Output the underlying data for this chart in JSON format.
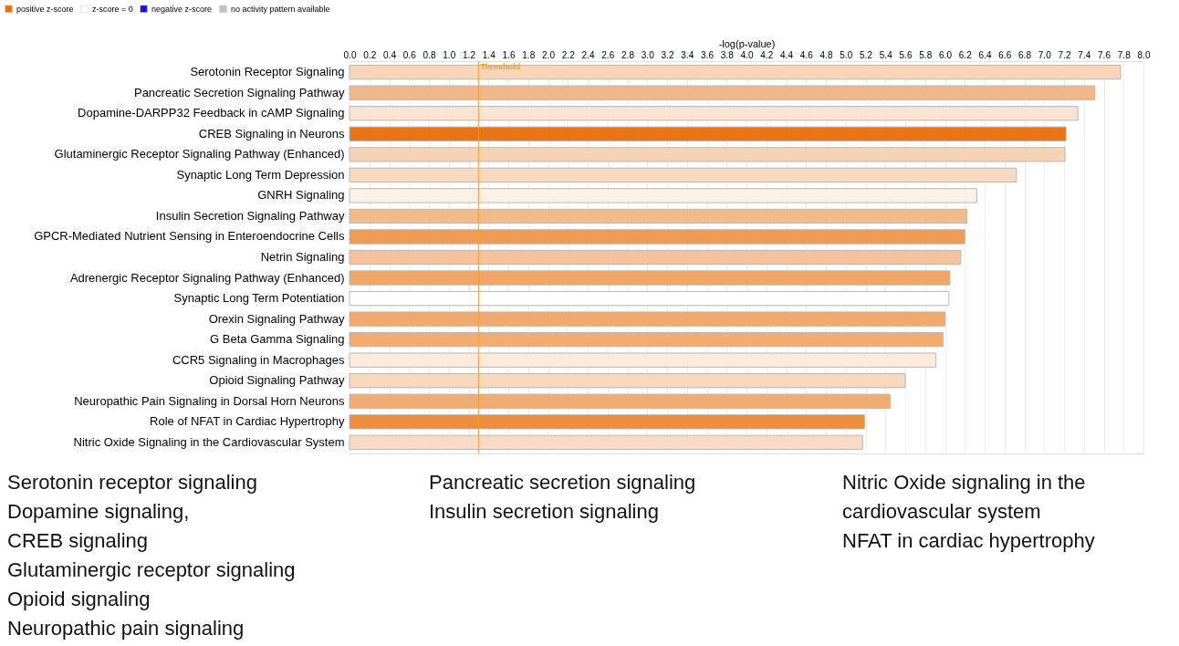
{
  "chart_data": {
    "type": "bar",
    "orientation": "horizontal",
    "xlabel": "-log(p-value)",
    "legend": "top left",
    "grid": "x",
    "categories": [
      "Serotonin Receptor Signaling",
      "Pancreatic Secretion Signaling Pathway",
      "Dopamine-DARPP32 Feedback in cAMP Signaling",
      "CREB Signaling in Neurons",
      "Glutaminergic Receptor Signaling Pathway (Enhanced)",
      "Synaptic Long Term Depression",
      "GNRH Signaling",
      "Insulin Secretion Signaling Pathway",
      "GPCR-Mediated Nutrient Sensing in Enteroendocrine Cells",
      "Netrin Signaling",
      "Adrenergic Receptor Signaling Pathway (Enhanced)",
      "Synaptic Long Term Potentiation",
      "Orexin Signaling Pathway",
      "G Beta Gamma Signaling",
      "CCR5 Signaling in Macrophages",
      "Opioid Signaling Pathway",
      "Neuropathic Pain Signaling in Dorsal Horn Neurons",
      "Role of NFAT in Cardiac Hypertrophy",
      "Nitric Oxide Signaling in the Cardiovascular System"
    ],
    "series": [
      {
        "name": "positive z-score",
        "color": "#e8700f",
        "values": [
          7.77,
          7.51,
          7.34,
          7.22,
          7.21,
          6.72,
          6.32,
          6.22,
          6.2,
          6.16,
          6.05,
          6.04,
          6.0,
          5.98,
          5.91,
          5.6,
          5.45,
          5.19,
          5.17
        ],
        "colors": [
          "#f8d5b8",
          "#f2b88a",
          "#fbe3d3",
          "#ea7415",
          "#f7d3b6",
          "#f8dac2",
          "#fdf1e7",
          "#f2b98b",
          "#ef9a55",
          "#f4c29c",
          "#f0a567",
          "#ffffff",
          "#f1a96e",
          "#f2ac72",
          "#fdeadd",
          "#f8d8be",
          "#f1ac73",
          "#ed8d3f",
          "#f8dbc4"
        ]
      },
      {
        "name": "z-score = 0",
        "color": "#ffffff",
        "values": [
          null,
          null,
          null,
          null,
          null,
          null,
          null,
          null,
          null,
          null,
          null,
          null,
          null,
          null,
          null,
          null,
          null,
          null,
          null
        ]
      },
      {
        "name": "negative z-score",
        "color": "#1414d8",
        "values": [
          null,
          null,
          null,
          null,
          null,
          null,
          null,
          null,
          null,
          null,
          null,
          null,
          null,
          null,
          null,
          null,
          null,
          null,
          null
        ]
      },
      {
        "name": "no activity pattern available",
        "color": "#c0c0c0",
        "values": [
          null,
          null,
          null,
          null,
          null,
          null,
          null,
          null,
          null,
          null,
          null,
          null,
          null,
          null,
          null,
          null,
          null,
          null,
          null
        ]
      }
    ],
    "xlim": [
      0,
      8
    ],
    "xticks": [
      {
        "value": 0,
        "label": "0.0"
      },
      0.2,
      0.4,
      0.6,
      0.8,
      {
        "value": 1,
        "label": "1.0"
      },
      1.2,
      1.4,
      1.6,
      1.8,
      {
        "value": 2,
        "label": "2.0"
      },
      2.2,
      2.4,
      2.6,
      2.8,
      {
        "value": 3,
        "label": "3.0"
      },
      3.2,
      3.4,
      3.6,
      3.8,
      {
        "value": 4,
        "label": "4.0"
      },
      4.2,
      4.4,
      4.6,
      4.8,
      {
        "value": 5,
        "label": "5.0"
      },
      5.2,
      5.4,
      5.6,
      5.8,
      {
        "value": 6,
        "label": "6.0"
      },
      6.2,
      6.4,
      6.6,
      6.8,
      {
        "value": 7,
        "label": "7.0"
      },
      7.2,
      7.4,
      7.6,
      7.8,
      {
        "value": 8,
        "label": "8.0"
      }
    ],
    "ref_lines": [
      {
        "axis": "x",
        "value": 1.3,
        "label": "Threshold",
        "color": "#f0a030"
      }
    ],
    "annotations": [
      "Serotonin receptor signaling\nDopamine signaling,\nCREB signaling\nGlutaminergic receptor signaling\nOpioid signaling\nNeuropathic pain signaling",
      "Pancreatic secretion signaling\nInsulin secretion signaling",
      "Nitric Oxide signaling in the\ncardiovascular system\nNFAT in cardiac hypertrophy"
    ]
  }
}
